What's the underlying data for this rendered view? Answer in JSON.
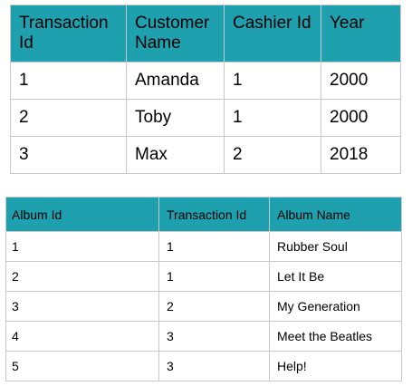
{
  "transactions": {
    "headers": [
      "Transaction Id",
      "Customer Name",
      "Cashier Id",
      "Year"
    ],
    "rows": [
      [
        "1",
        "Amanda",
        "1",
        "2000"
      ],
      [
        "2",
        "Toby",
        "1",
        "2000"
      ],
      [
        "3",
        "Max",
        "2",
        "2018"
      ]
    ]
  },
  "albums": {
    "headers": [
      "Album Id",
      "Transaction Id",
      "Album Name"
    ],
    "rows": [
      [
        "1",
        "1",
        "Rubber Soul"
      ],
      [
        "2",
        "1",
        "Let It Be"
      ],
      [
        "3",
        "2",
        "My Generation"
      ],
      [
        "4",
        "3",
        "Meet the Beatles"
      ],
      [
        "5",
        "3",
        "Help!"
      ]
    ]
  },
  "colors": {
    "header_bg": "#1fa0ae",
    "border": "#c8c8c8"
  }
}
